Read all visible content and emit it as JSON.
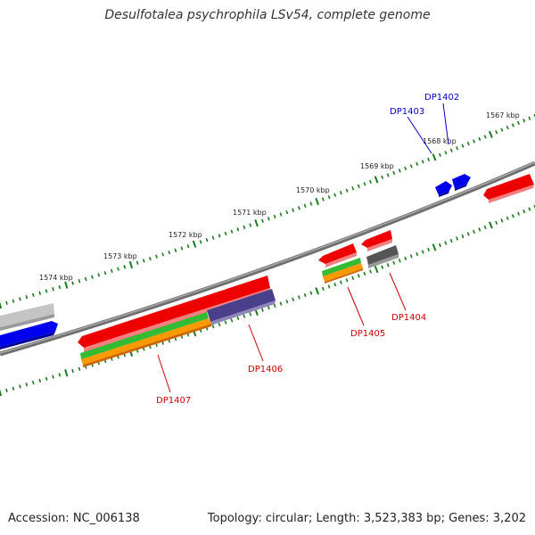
{
  "title": "Desulfotalea psychrophila LSv54, complete genome",
  "footer": {
    "accession": "Accession: NC_006138",
    "summary": "Topology: circular; Length: 3,523,383 bp; Genes: 3,202"
  },
  "scale_labels": [
    "1567 kbp",
    "1568 kbp",
    "1569 kbp",
    "1570 kbp",
    "1571 kbp",
    "1572 kbp",
    "1573 kbp",
    "1574 kbp"
  ],
  "gene_labels": [
    {
      "text": "DP1402",
      "color": "#0000cc"
    },
    {
      "text": "DP1403",
      "color": "#0000cc"
    },
    {
      "text": "DP1404",
      "color": "#cc0000"
    },
    {
      "text": "DP1405",
      "color": "#cc0000"
    },
    {
      "text": "DP1406",
      "color": "#cc0000"
    },
    {
      "text": "DP1407",
      "color": "#cc0000"
    }
  ],
  "colors": {
    "backbone": "#7a7a7a",
    "tick": "#1a7a1a",
    "cds_forward": "#0000ee",
    "cds_reverse": "#ee0000",
    "feature_green": "#33bb33",
    "feature_orange": "#ff9900",
    "feature_purple": "#4a3f8a",
    "feature_grey": "#555555",
    "feature_lightgrey": "#bbbbbb",
    "leader_blue": "#0000cc",
    "leader_red": "#cc0000"
  }
}
